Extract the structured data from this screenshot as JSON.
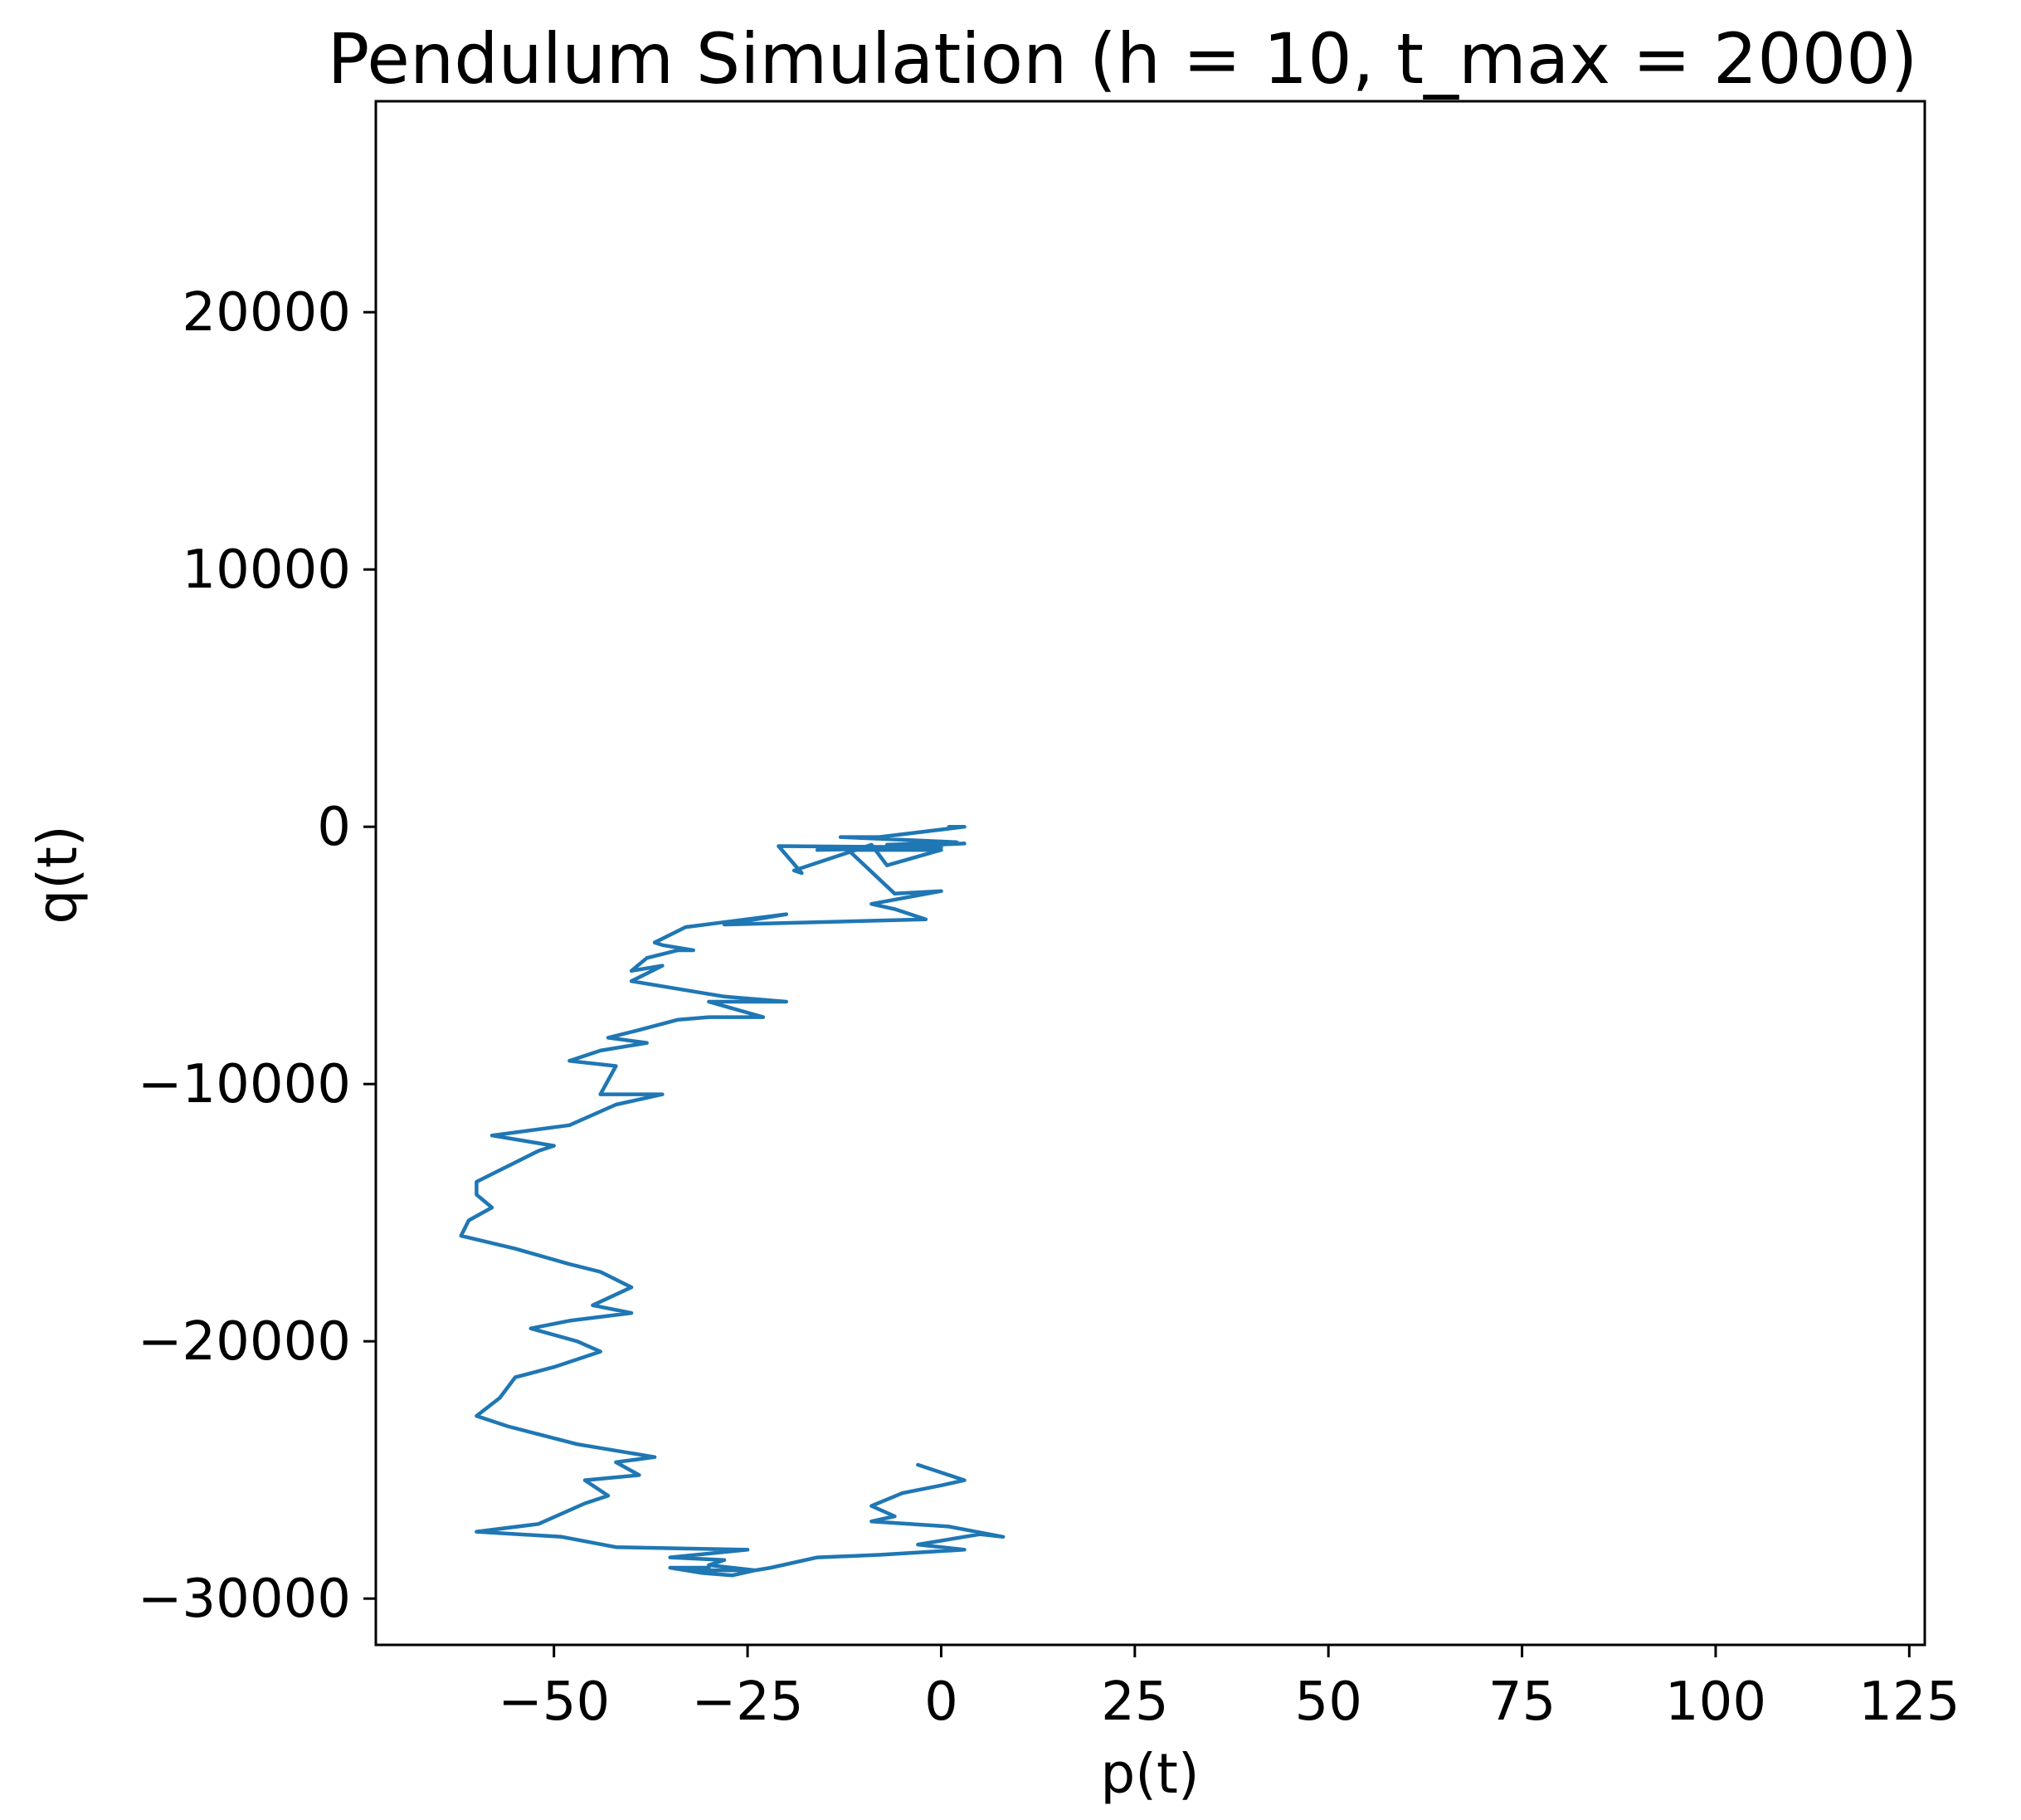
{
  "chart_data": {
    "type": "line",
    "title": "Pendulum Simulation (h = 10, t_max = 2000)",
    "xlabel": "p(t)",
    "ylabel": "q(t)",
    "xlim": [
      -73,
      127
    ],
    "ylim": [
      -31800,
      28200
    ],
    "x_ticks": [
      -50,
      -25,
      0,
      25,
      50,
      75,
      100,
      125
    ],
    "x_tick_labels": [
      "−50",
      "−25",
      "0",
      "25",
      "50",
      "75",
      "100",
      "125"
    ],
    "y_ticks": [
      -30000,
      -20000,
      -10000,
      0,
      10000,
      20000
    ],
    "y_tick_labels": [
      "−30000",
      "−20000",
      "−10000",
      "0",
      "10000",
      "20000"
    ],
    "grid": false,
    "color": "#1f77b4",
    "series": [
      {
        "x": [
          1,
          3,
          -8,
          -13,
          2,
          -7,
          3,
          -16,
          0,
          -21,
          -18,
          -19,
          -9,
          -7,
          0,
          -12,
          -6,
          0,
          -9,
          -6,
          -2,
          -28,
          -20,
          -33,
          -37,
          -36,
          -32,
          -34,
          -38,
          -40,
          -36,
          -40,
          -28,
          -20,
          -30,
          -23,
          -30,
          -34,
          -39,
          -43,
          -38,
          -44,
          -48,
          -42,
          -44,
          -36,
          -42,
          -48,
          -58,
          -50,
          -52,
          -56,
          -60,
          -60,
          -58,
          -61,
          -62,
          -55,
          -48,
          -44,
          -40,
          -45,
          -40,
          -48,
          -53,
          -47,
          -44,
          -50,
          -55,
          -57,
          -60,
          -56,
          -47,
          -37,
          -42,
          -39,
          -46,
          -43,
          -46,
          -52,
          -60,
          -49,
          -42,
          -25,
          -35,
          -28,
          -30,
          -24,
          -32,
          -30,
          -35,
          -31,
          -27,
          -24,
          -22,
          -16,
          -8,
          3,
          -3,
          5,
          8,
          1,
          -9,
          -6,
          -9,
          -5,
          0,
          3,
          -3
        ],
        "y": [
          0,
          0,
          -400,
          -400,
          -600,
          -700,
          -650,
          -900,
          -800,
          -750,
          -1800,
          -1700,
          -700,
          -1500,
          -900,
          -900,
          -2600,
          -2500,
          -3000,
          -3200,
          -3600,
          -3800,
          -3400,
          -3900,
          -4500,
          -4600,
          -4800,
          -4800,
          -5100,
          -5600,
          -5400,
          -6000,
          -6600,
          -6800,
          -6800,
          -7400,
          -7400,
          -7500,
          -7900,
          -8200,
          -8400,
          -8700,
          -9100,
          -9300,
          -10400,
          -10400,
          -10800,
          -11600,
          -12000,
          -12400,
          -12600,
          -13200,
          -13800,
          -14300,
          -14800,
          -15300,
          -15900,
          -16400,
          -17000,
          -17300,
          -17900,
          -18600,
          -18900,
          -19200,
          -19500,
          -20000,
          -20400,
          -21000,
          -21400,
          -22200,
          -22900,
          -23300,
          -24000,
          -24500,
          -24700,
          -25200,
          -25400,
          -26000,
          -26300,
          -27100,
          -27400,
          -27600,
          -28000,
          -28100,
          -28400,
          -28500,
          -28700,
          -28900,
          -28900,
          -28800,
          -28800,
          -29000,
          -29100,
          -28900,
          -28800,
          -28400,
          -28300,
          -28100,
          -27900,
          -27500,
          -27600,
          -27200,
          -27000,
          -26800,
          -26400,
          -25900,
          -25600,
          -25400,
          -24800
        ]
      }
    ]
  }
}
